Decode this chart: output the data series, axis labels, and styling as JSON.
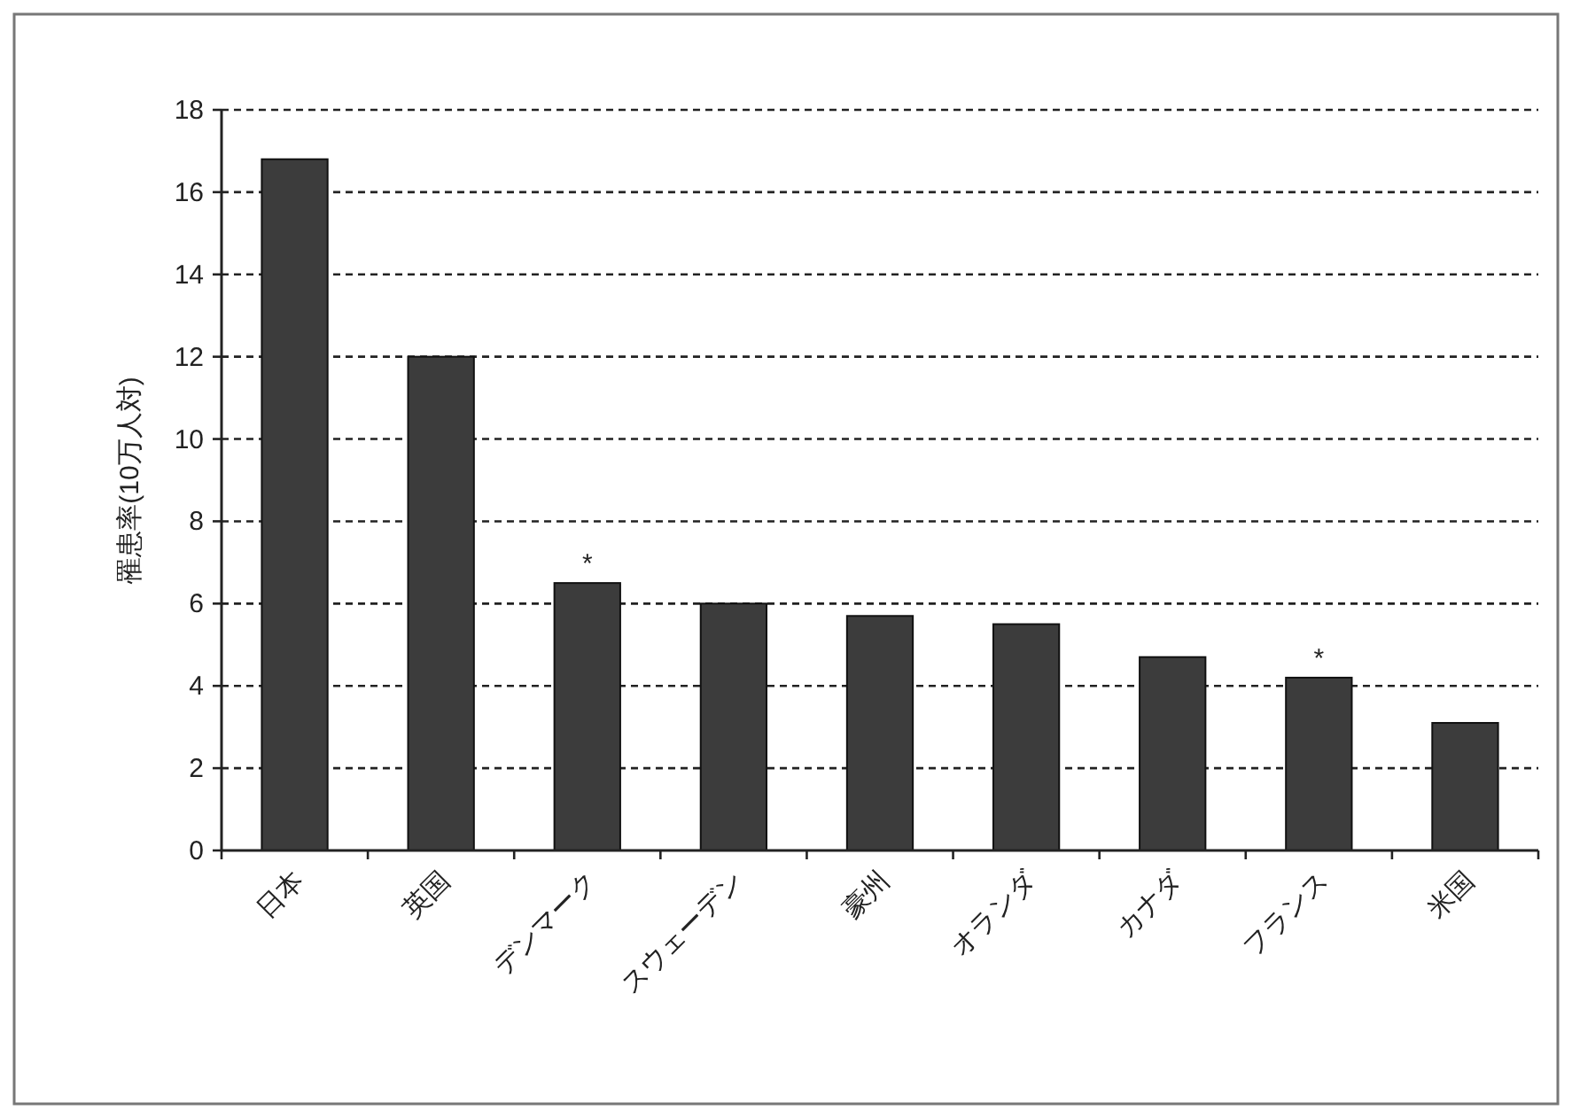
{
  "chart_data": {
    "type": "bar",
    "ylabel": "罹患率(10万人対)",
    "categories": [
      "日本",
      "英国",
      "デンマーク",
      "スウェーデン",
      "豪州",
      "オランダ",
      "カナダ",
      "フランス",
      "米国"
    ],
    "values": [
      16.8,
      12.0,
      6.5,
      6.0,
      5.7,
      5.5,
      4.7,
      4.2,
      3.1
    ],
    "color": "#3c3c3c",
    "ylim": [
      0,
      18
    ],
    "yticks": [
      0,
      2,
      4,
      6,
      8,
      10,
      12,
      14,
      16,
      18
    ],
    "grid": "y",
    "annotations": [
      {
        "text": "*",
        "x": "デンマーク",
        "y": 6.5
      },
      {
        "text": "*",
        "x": "フランス",
        "y": 4.2
      }
    ]
  }
}
